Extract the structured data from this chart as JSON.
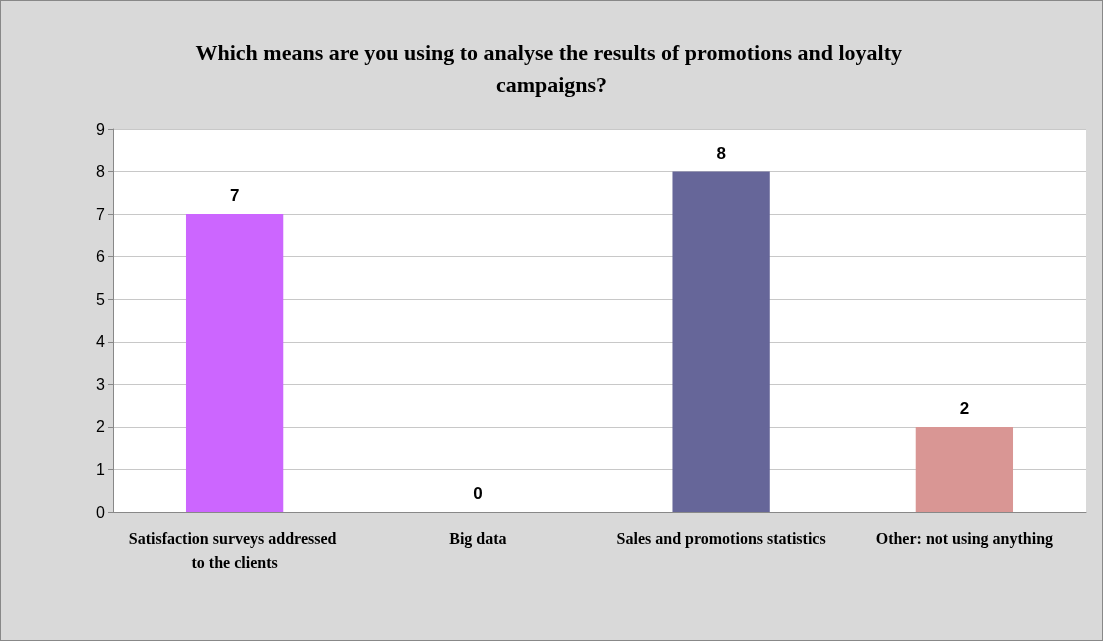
{
  "chart_data": {
    "type": "bar",
    "title": "Which means are you using to analyse the results of promotions and loyalty campaigns?",
    "categories": [
      "Satisfaction surveys addressed to the clients",
      "Big data",
      "Sales and promotions statistics",
      "Other: not using anything"
    ],
    "values": [
      7,
      0,
      8,
      2
    ],
    "colors": [
      "#cc66ff",
      null,
      "#666699",
      "#d99694"
    ],
    "ylim": [
      0,
      9
    ],
    "yticks": [
      0,
      1,
      2,
      3,
      4,
      5,
      6,
      7,
      8,
      9
    ],
    "grid": "y",
    "data_labels": true
  }
}
